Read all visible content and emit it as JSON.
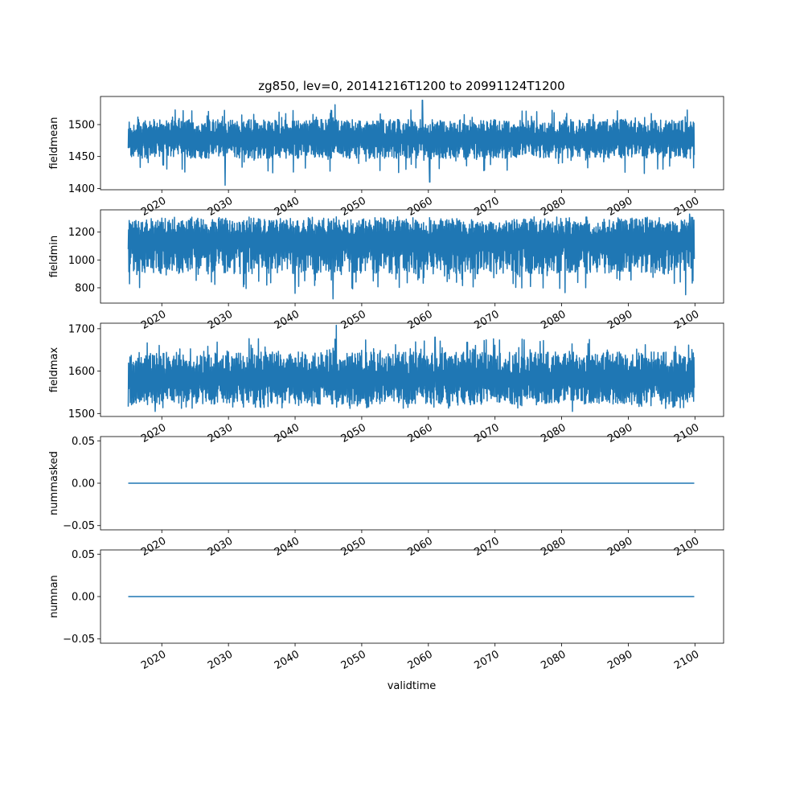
{
  "title": "zg850, lev=0, 20141216T1200 to 20991124T1200",
  "xlabel": "validtime",
  "line_color": "#1f77b4",
  "chart_data": [
    {
      "type": "line",
      "ylabel": "fieldmean",
      "xlim": [
        2010.8,
        2104.3
      ],
      "ylim": [
        1398,
        1544
      ],
      "x_ticks": [
        "2020",
        "2030",
        "2040",
        "2050",
        "2060",
        "2070",
        "2080",
        "2090",
        "2100"
      ],
      "y_ticks": [
        "1400",
        "1450",
        "1500"
      ],
      "series": [
        {
          "x_range": [
            "20141216T1200",
            "20991124T1200"
          ],
          "mean": 1478,
          "range": [
            1405,
            1538
          ],
          "envelope": {
            "base_low": 1447,
            "base_high": 1508,
            "extremes": [
              [
                2029.5,
                1405
              ],
              [
                2059.1,
                1538
              ],
              [
                2060.2,
                1410
              ],
              [
                2046.0,
                1531
              ]
            ]
          }
        }
      ]
    },
    {
      "type": "line",
      "ylabel": "fieldmin",
      "xlim": [
        2010.8,
        2104.3
      ],
      "ylim": [
        690,
        1360
      ],
      "x_ticks": [
        "2020",
        "2030",
        "2040",
        "2050",
        "2060",
        "2070",
        "2080",
        "2090",
        "2100"
      ],
      "y_ticks": [
        "800",
        "1000",
        "1200"
      ],
      "series": [
        {
          "x_range": [
            "20141216T1200",
            "20991124T1200"
          ],
          "mean": 1150,
          "range": [
            720,
            1330
          ],
          "envelope": {
            "base_low": 900,
            "base_high": 1290,
            "extremes": [
              [
                2045.7,
                720
              ],
              [
                2040.0,
                760
              ],
              [
                2080.5,
                765
              ],
              [
                2098.6,
                750
              ],
              [
                2099.2,
                1330
              ]
            ]
          }
        }
      ]
    },
    {
      "type": "line",
      "ylabel": "fieldmax",
      "xlim": [
        2010.8,
        2104.3
      ],
      "ylim": [
        1493,
        1713
      ],
      "x_ticks": [
        "2020",
        "2030",
        "2040",
        "2050",
        "2060",
        "2070",
        "2080",
        "2090",
        "2100"
      ],
      "y_ticks": [
        "1500",
        "1600",
        "1700"
      ],
      "series": [
        {
          "x_range": [
            "20141216T1200",
            "20991124T1200"
          ],
          "mean": 1580,
          "range": [
            1505,
            1708
          ],
          "envelope": {
            "base_low": 1522,
            "base_high": 1645,
            "extremes": [
              [
                2046.2,
                1708
              ],
              [
                2019.0,
                1505
              ],
              [
                2081.6,
                1505
              ],
              [
                2061.0,
                1680
              ]
            ]
          }
        }
      ]
    },
    {
      "type": "line",
      "ylabel": "nummasked",
      "xlim": [
        2010.8,
        2104.3
      ],
      "ylim": [
        -0.055,
        0.055
      ],
      "x_ticks": [
        "2020",
        "2030",
        "2040",
        "2050",
        "2060",
        "2070",
        "2080",
        "2090",
        "2100"
      ],
      "y_ticks": [
        "−0.05",
        "0.00",
        "0.05"
      ],
      "series": [
        {
          "x": [
            2014.96,
            2099.9
          ],
          "y": [
            0.0,
            0.0
          ]
        }
      ]
    },
    {
      "type": "line",
      "ylabel": "numnan",
      "xlim": [
        2010.8,
        2104.3
      ],
      "ylim": [
        -0.055,
        0.055
      ],
      "x_ticks": [
        "2020",
        "2030",
        "2040",
        "2050",
        "2060",
        "2070",
        "2080",
        "2090",
        "2100"
      ],
      "y_ticks": [
        "−0.05",
        "0.00",
        "0.05"
      ],
      "series": [
        {
          "x": [
            2014.96,
            2099.9
          ],
          "y": [
            0.0,
            0.0
          ]
        }
      ]
    }
  ]
}
